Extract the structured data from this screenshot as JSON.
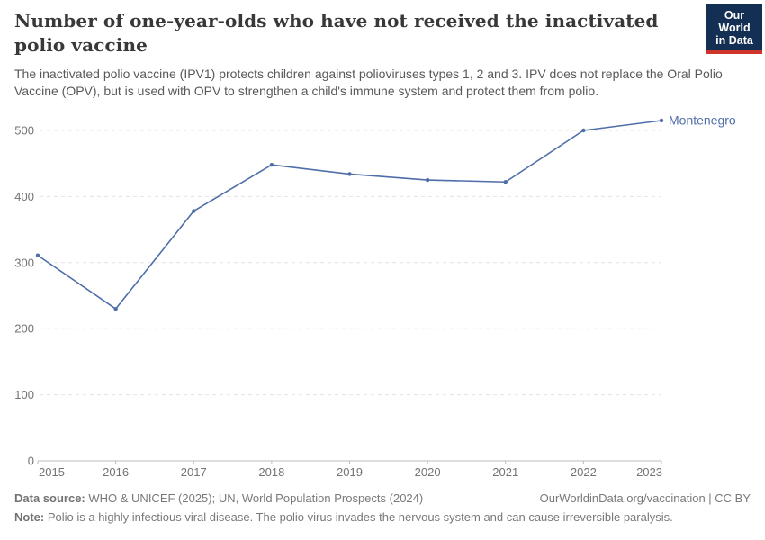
{
  "header": {
    "title": "Number of one-year-olds who have not received the inactivated polio vaccine",
    "subtitle": "The inactivated polio vaccine (IPV1) protects children against polioviruses types 1, 2 and 3. IPV does not replace the Oral Polio Vaccine (OPV), but is used with OPV to strengthen a child's immune system and protect them from polio."
  },
  "logo": {
    "line1": "Our World",
    "line2": "in Data",
    "bg_color": "#132f53",
    "stripe_color": "#cf342b"
  },
  "chart_data": {
    "type": "line",
    "title": "Number of one-year-olds who have not received the inactivated polio vaccine",
    "x": [
      2015,
      2016,
      2017,
      2018,
      2019,
      2020,
      2021,
      2022,
      2023
    ],
    "series": [
      {
        "name": "Montenegro",
        "values": [
          311,
          230,
          378,
          448,
          434,
          425,
          422,
          500,
          515
        ],
        "color": "#4f6ea9"
      }
    ],
    "xlabel": "",
    "ylabel": "",
    "ylim": [
      0,
      500
    ],
    "yticks": [
      0,
      100,
      200,
      300,
      400,
      500
    ],
    "grid": "horizontal-dashed",
    "legend_position": "end-of-line-label",
    "entity_label": "Montenegro"
  },
  "footer": {
    "data_source_label": "Data source:",
    "data_source_value": "WHO & UNICEF (2025); UN, World Population Prospects (2024)",
    "rights": "OurWorldinData.org/vaccination | CC BY",
    "note_label": "Note:",
    "note_value": "Polio is a highly infectious viral disease. The polio virus invades the nervous system and can cause irreversible paralysis."
  },
  "colors": {
    "title_text": "#383838",
    "subtitle_text": "#595959",
    "axis_text": "#737373",
    "gridline": "#e2e2e2",
    "axis_line": "#bcbcbc",
    "series_line": "#4f6ea9",
    "footer_text": "#797979"
  }
}
